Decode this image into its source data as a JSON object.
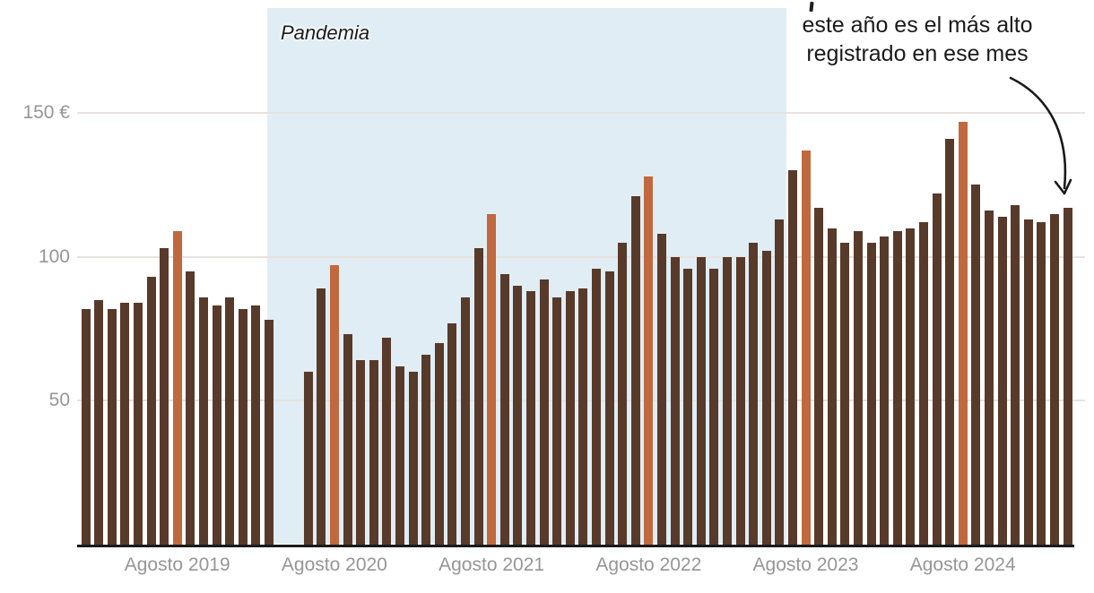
{
  "pandemia": {
    "label": "Pandemia"
  },
  "annotation": {
    "lines": [
      "este año es el más alto",
      "registrado en ese mes"
    ]
  },
  "colors": {
    "bar": "#583A2B",
    "highlight": "#C0693E",
    "pandemic_bg": "#E0EDF4",
    "grid": "#E8E2DF",
    "axis": "#1A1A1A",
    "tick_text": "#969696",
    "annotation_text": "#1A1A1A"
  },
  "chart_data": {
    "type": "bar",
    "unit": "€",
    "title": "",
    "ylim": [
      0,
      165
    ],
    "grid": true,
    "y_ticks": [
      {
        "value": 150,
        "label": "150 €"
      },
      {
        "value": 100,
        "label": "100"
      },
      {
        "value": 50,
        "label": "50"
      }
    ],
    "x_ticks": [
      {
        "label": "Agosto 2019",
        "month_index": 7
      },
      {
        "label": "Agosto 2020",
        "month_index": 19
      },
      {
        "label": "Agosto 2021",
        "month_index": 31
      },
      {
        "label": "Agosto 2022",
        "month_index": 43
      },
      {
        "label": "Agosto 2023",
        "month_index": 55
      },
      {
        "label": "Agosto 2024",
        "month_index": 67
      }
    ],
    "august_indices": [
      7,
      19,
      31,
      43,
      55,
      67
    ],
    "values": [
      82,
      85,
      82,
      84,
      84,
      93,
      103,
      109,
      95,
      86,
      83,
      86,
      82,
      83,
      78,
      null,
      null,
      60,
      89,
      97,
      73,
      64,
      64,
      72,
      62,
      60,
      66,
      70,
      77,
      86,
      103,
      115,
      94,
      90,
      88,
      92,
      86,
      88,
      89,
      96,
      95,
      105,
      121,
      128,
      108,
      100,
      96,
      100,
      96,
      100,
      100,
      105,
      102,
      113,
      130,
      137,
      117,
      110,
      105,
      109,
      105,
      107,
      109,
      110,
      112,
      122,
      141,
      147,
      125,
      116,
      114,
      118,
      113,
      112,
      115,
      117
    ],
    "pandemic_region_month_span": [
      13.9,
      53.5
    ]
  }
}
